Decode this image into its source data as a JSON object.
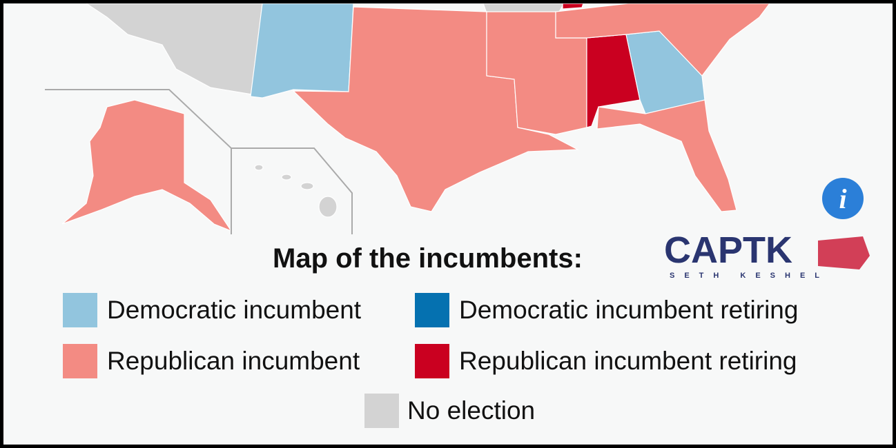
{
  "title": "Map of the incumbents:",
  "logo": {
    "name": "CAPTK",
    "tagline": "SETH KESHEL"
  },
  "legend": [
    {
      "label": "Democratic incumbent",
      "color": "#92c5de"
    },
    {
      "label": "Democratic incumbent retiring",
      "color": "#0571b0"
    },
    {
      "label": "Republican incumbent",
      "color": "#f38b83"
    },
    {
      "label": "Republican incumbent retiring",
      "color": "#ca0020"
    },
    {
      "label": "No election",
      "color": "#d3d3d3"
    }
  ]
}
